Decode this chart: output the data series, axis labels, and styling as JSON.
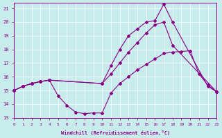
{
  "xlabel": "Windchill (Refroidissement éolien,°C)",
  "background_color": "#c8ecec",
  "line_color": "#880088",
  "xlim": [
    0,
    23
  ],
  "ylim": [
    13,
    21.4
  ],
  "yticks": [
    13,
    14,
    15,
    16,
    17,
    18,
    19,
    20,
    21
  ],
  "xticks": [
    0,
    1,
    2,
    3,
    4,
    5,
    6,
    7,
    8,
    9,
    10,
    11,
    12,
    13,
    14,
    15,
    16,
    17,
    18,
    19,
    20,
    21,
    22,
    23
  ],
  "line1_x": [
    0,
    1,
    2,
    3,
    4,
    5,
    6,
    7,
    8,
    9,
    10,
    11,
    12,
    13,
    14,
    15,
    16,
    17,
    18,
    19,
    20,
    21,
    22,
    23
  ],
  "line1_y": [
    15.0,
    15.3,
    15.5,
    15.65,
    15.75,
    14.6,
    13.9,
    13.4,
    13.3,
    13.35,
    13.35,
    14.8,
    15.5,
    16.0,
    16.5,
    16.9,
    17.3,
    17.7,
    17.8,
    17.85,
    17.9,
    16.2,
    15.4,
    14.9
  ],
  "line2_x": [
    0,
    1,
    2,
    3,
    4,
    10,
    11,
    12,
    13,
    14,
    15,
    16,
    17,
    18,
    22,
    23
  ],
  "line2_y": [
    15.0,
    15.3,
    15.5,
    15.65,
    15.75,
    15.5,
    16.8,
    18.0,
    19.0,
    19.5,
    20.0,
    20.1,
    21.3,
    20.0,
    15.3,
    14.9
  ],
  "line3_x": [
    0,
    1,
    2,
    3,
    4,
    10,
    11,
    12,
    13,
    14,
    15,
    16,
    17,
    18,
    23
  ],
  "line3_y": [
    15.0,
    15.3,
    15.5,
    15.65,
    15.75,
    15.5,
    16.2,
    17.0,
    17.8,
    18.5,
    19.2,
    19.8,
    20.0,
    18.3,
    14.9
  ]
}
